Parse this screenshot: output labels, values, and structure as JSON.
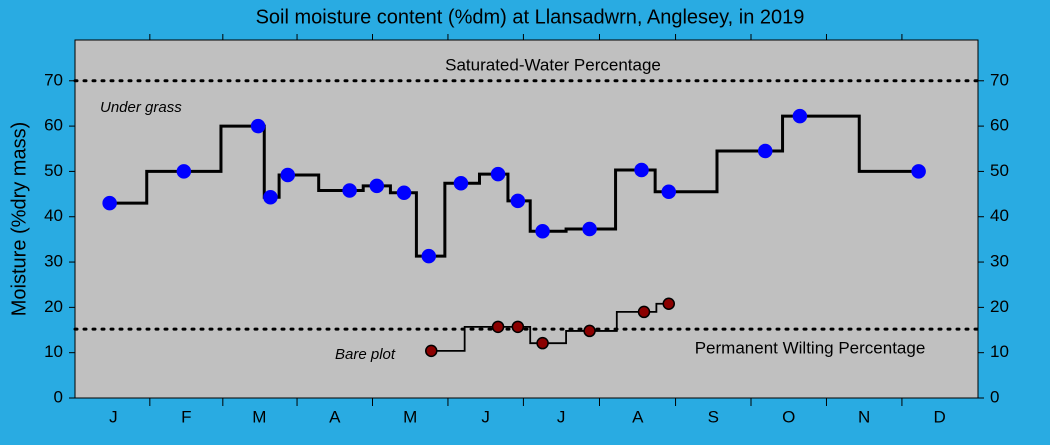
{
  "chart_data": {
    "type": "step",
    "title": "Soil moisture content (%dm)  at Llansadwrn, Anglesey, in 2019",
    "y_label": "Moisture (%dry mass)",
    "xlim": [
      0,
      365
    ],
    "xticks": [
      {
        "value": 15.5,
        "label": "J"
      },
      {
        "value": 45,
        "label": "F"
      },
      {
        "value": 74.5,
        "label": "M"
      },
      {
        "value": 105,
        "label": "A"
      },
      {
        "value": 135.5,
        "label": "M"
      },
      {
        "value": 166,
        "label": "J"
      },
      {
        "value": 196.5,
        "label": "J"
      },
      {
        "value": 227.5,
        "label": "A"
      },
      {
        "value": 258,
        "label": "S"
      },
      {
        "value": 288.5,
        "label": "O"
      },
      {
        "value": 319,
        "label": "N"
      },
      {
        "value": 349.5,
        "label": "D"
      }
    ],
    "ylim": [
      0,
      79
    ],
    "yticks": [
      0,
      10,
      20,
      30,
      40,
      50,
      60,
      70
    ],
    "series": [
      {
        "name": "Under grass",
        "color": "#0000ff",
        "line_color": "#000000",
        "x": [
          14,
          44,
          74,
          79,
          86,
          111,
          122,
          133,
          143,
          156,
          171,
          179,
          189,
          208,
          229,
          240,
          279,
          293,
          341
        ],
        "values": [
          43,
          50,
          60,
          44.3,
          49.2,
          45.8,
          46.8,
          45.3,
          31.3,
          47.4,
          49.4,
          43.5,
          36.8,
          37.3,
          50.3,
          45.5,
          54.5,
          62.2,
          50
        ]
      },
      {
        "name": "Bare plot",
        "color": "#8b0000",
        "line_color": "#000000",
        "x": [
          144,
          171,
          179,
          189,
          208,
          230,
          240
        ],
        "values": [
          10.4,
          15.7,
          15.7,
          12.1,
          14.8,
          19,
          20.8
        ]
      }
    ],
    "hlines": [
      {
        "value": 70,
        "label": "Saturated-Water Percentage"
      },
      {
        "value": 15.2,
        "label": "Permanent Wilting Percentage"
      }
    ]
  }
}
